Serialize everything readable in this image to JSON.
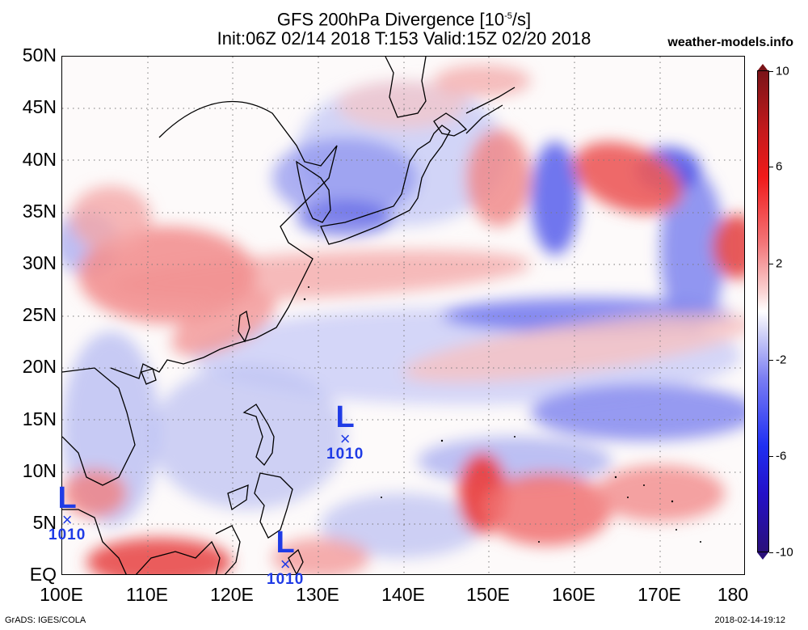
{
  "header": {
    "title_line1_prefix": "GFS 200hPa Divergence [10",
    "title_line1_exp": "-5",
    "title_line1_suffix": "/s]",
    "title_line2": "Init:06Z 02/14 2018 T:153 Valid:15Z 02/20 2018",
    "site": "weather-models.info"
  },
  "map": {
    "lat_labels": [
      "50N",
      "45N",
      "40N",
      "35N",
      "30N",
      "25N",
      "20N",
      "15N",
      "10N",
      "5N",
      "EQ"
    ],
    "lon_labels": [
      "100E",
      "110E",
      "120E",
      "130E",
      "140E",
      "150E",
      "160E",
      "170E",
      "180"
    ],
    "lat_range": [
      0,
      50
    ],
    "lon_range": [
      100,
      180
    ],
    "grid": "dotted",
    "lows": [
      {
        "symbol": "L",
        "value": "1010",
        "lat": 13.0,
        "lon": 133.3
      },
      {
        "symbol": "L",
        "value": "1010",
        "lat": 5.3,
        "lon": 100.9
      },
      {
        "symbol": "L",
        "value": "1010",
        "lat": 1.0,
        "lon": 126.4
      }
    ],
    "mark_symbol": "×"
  },
  "colorbar": {
    "labels": [
      "10",
      "6",
      "2",
      "-2",
      "-6",
      "-10"
    ],
    "colors": {
      "max": "#7a1418",
      "pos": "#f01a1a",
      "zero": "#ffffff",
      "neg": "#1f2ff2",
      "min": "#2a107a"
    }
  },
  "footer": {
    "left": "GrADS: IGES/COLA",
    "right": "2018-02-14-19:12"
  }
}
